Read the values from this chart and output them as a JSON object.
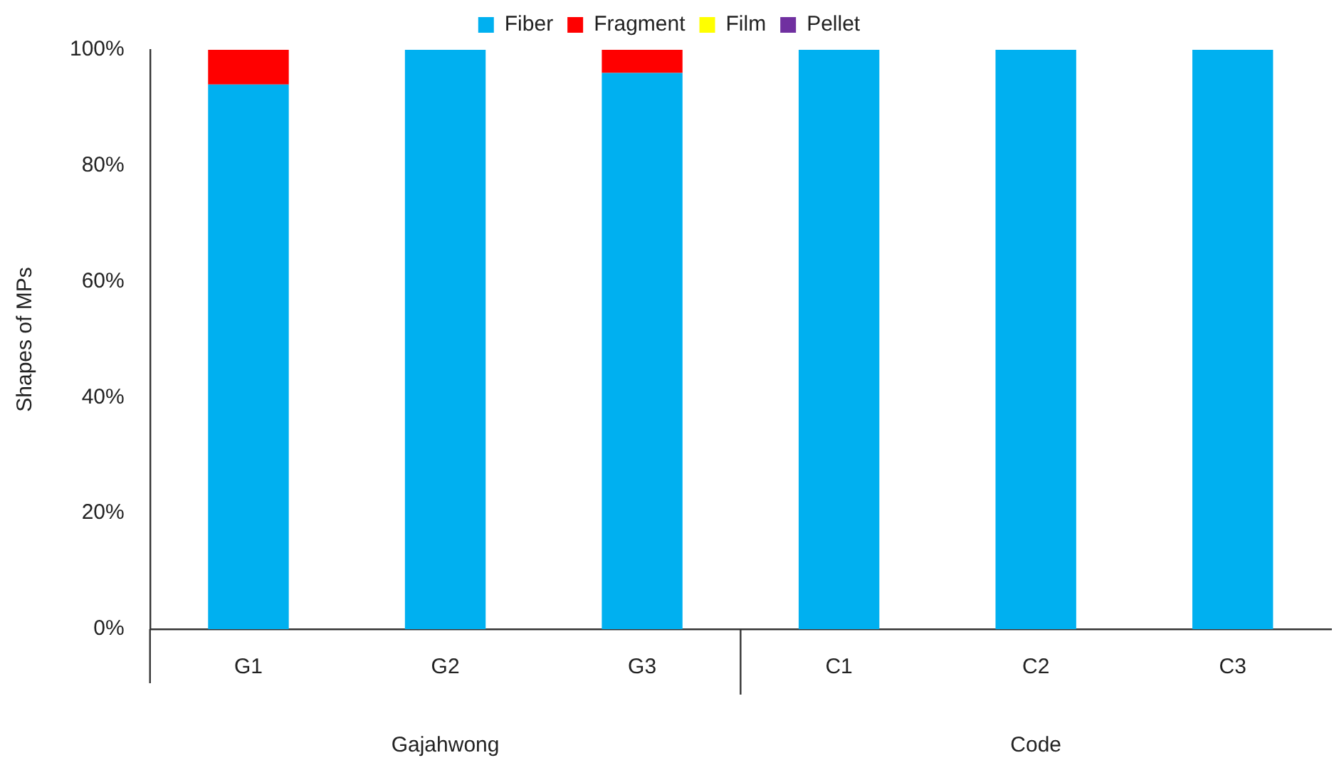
{
  "chart_data": {
    "type": "bar",
    "stacked": true,
    "ylabel": "Shapes of MPs",
    "categories": [
      "G1",
      "G2",
      "G3",
      "C1",
      "C2",
      "C3"
    ],
    "series": [
      {
        "name": "Fiber",
        "color": "#00b0f0",
        "values": [
          94,
          100,
          96,
          100,
          100,
          100
        ]
      },
      {
        "name": "Fragment",
        "color": "#ff0000",
        "values": [
          6,
          0,
          4,
          0,
          0,
          0
        ]
      },
      {
        "name": "Film",
        "color": "#ffff00",
        "values": [
          0,
          0,
          0,
          0,
          0,
          0
        ]
      },
      {
        "name": "Pellet",
        "color": "#7030a0",
        "values": [
          0,
          0,
          0,
          0,
          0,
          0
        ]
      }
    ],
    "ylim": [
      0,
      100
    ],
    "yticks": [
      {
        "value": 0,
        "label": "0%"
      },
      {
        "value": 20,
        "label": "20%"
      },
      {
        "value": 40,
        "label": "40%"
      },
      {
        "value": 60,
        "label": "60%"
      },
      {
        "value": 80,
        "label": "80%"
      },
      {
        "value": 100,
        "label": "100%"
      }
    ],
    "grid": false,
    "legend": "top",
    "annotations": [
      "Gajahwong",
      "Code"
    ]
  }
}
